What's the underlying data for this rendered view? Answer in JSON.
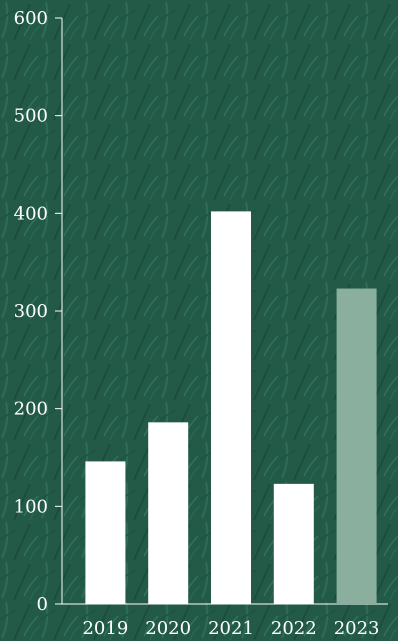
{
  "chart_data": {
    "type": "bar",
    "title": "",
    "xlabel": "",
    "ylabel": "",
    "categories": [
      "2019",
      "2020",
      "2021",
      "2022",
      "2023"
    ],
    "values": [
      146,
      186,
      402,
      123,
      323
    ],
    "ylim": [
      0,
      600
    ],
    "yticks": [
      0,
      100,
      200,
      300,
      400,
      500,
      600
    ],
    "grid": false,
    "legend": "none",
    "colors": {
      "background": "#235a47",
      "bar": "#ffffff",
      "highlight_bar": "#8aaf9f",
      "axis": "#ffffff",
      "text": "#ffffff"
    },
    "highlight_index": 4
  }
}
